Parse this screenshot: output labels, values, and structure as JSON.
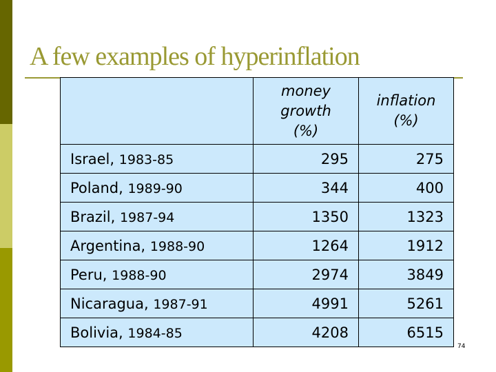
{
  "title": "A few examples of hyperinflation",
  "table": {
    "headers": [
      "",
      "money growth (%)",
      "inflation (%)"
    ],
    "header_lines": {
      "money": [
        "money",
        "growth",
        "(%)"
      ],
      "inflation": [
        "inflation",
        "(%)"
      ]
    },
    "rows": [
      {
        "country": "Israel,",
        "years": "1983-85",
        "money": "295",
        "inflation": "275"
      },
      {
        "country": "Poland,",
        "years": "1989-90",
        "money": "344",
        "inflation": "400"
      },
      {
        "country": "Brazil,",
        "years": "1987-94",
        "money": "1350",
        "inflation": "1323"
      },
      {
        "country": "Argentina,",
        "years": "1988-90",
        "money": "1264",
        "inflation": "1912"
      },
      {
        "country": "Peru,",
        "years": "1988-90",
        "money": "2974",
        "inflation": "3849"
      },
      {
        "country": "Nicaragua,",
        "years": "1987-91",
        "money": "4991",
        "inflation": "5261"
      },
      {
        "country": "Bolivia,",
        "years": "1984-85",
        "money": "4208",
        "inflation": "6515"
      }
    ]
  },
  "page_number": "74",
  "colors": {
    "accent": "#999933",
    "bar1": "#666600",
    "bar2": "#cccc66",
    "bar3": "#999900",
    "table_bg": "#cce9fc"
  }
}
